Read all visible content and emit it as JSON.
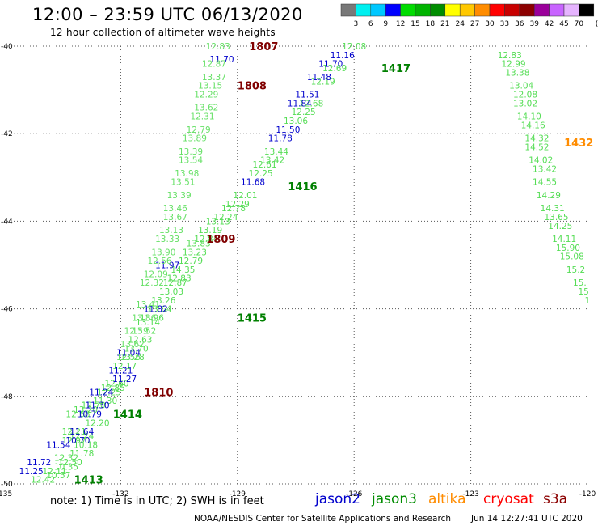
{
  "header": {
    "title": "12:00 – 23:59 UTC 06/13/2020",
    "subtitle": "12 hour collection of altimeter wave heights"
  },
  "colorbar": {
    "colors": [
      "#787878",
      "#00f0f0",
      "#00c8ff",
      "#0000ff",
      "#00dc00",
      "#00b400",
      "#008c00",
      "#ffff00",
      "#ffc800",
      "#ff8c00",
      "#ff0000",
      "#c80000",
      "#8c0000",
      "#9b009b",
      "#c864ff",
      "#e6b4ff",
      "#000000"
    ],
    "ticks": [
      "3",
      "6",
      "9",
      "12",
      "15",
      "18",
      "21",
      "24",
      "27",
      "30",
      "33",
      "36",
      "39",
      "42",
      "45",
      "70"
    ],
    "unit": "(ft)"
  },
  "chart_data": {
    "type": "scatter",
    "xlim": [
      -135,
      -120
    ],
    "ylim": [
      -50,
      -40
    ],
    "xticks": [
      "-135",
      "-132",
      "-129",
      "-126",
      "-123",
      "-120"
    ],
    "yticks": [
      "-40",
      "-42",
      "-44",
      "-46",
      "-48",
      "-50"
    ],
    "grid": true,
    "series": [
      {
        "name": "jason3 1417-1416-1415-1414",
        "color": "#55dd55",
        "points": [
          {
            "x": -126.0,
            "y": -40.0,
            "v": "12.08"
          },
          {
            "x": -126.5,
            "y": -40.5,
            "v": "12.69"
          },
          {
            "x": -126.8,
            "y": -40.8,
            "v": "12.19"
          },
          {
            "x": -127.1,
            "y": -41.3,
            "v": "12.68"
          },
          {
            "x": -127.3,
            "y": -41.5,
            "v": "12.25"
          },
          {
            "x": -127.5,
            "y": -41.7,
            "v": "13.06"
          },
          {
            "x": -128.0,
            "y": -42.4,
            "v": "13.44"
          },
          {
            "x": -128.1,
            "y": -42.6,
            "v": "13.42"
          },
          {
            "x": -128.3,
            "y": -42.7,
            "v": "12.61"
          },
          {
            "x": -128.4,
            "y": -42.9,
            "v": "12.25"
          },
          {
            "x": -128.8,
            "y": -43.4,
            "v": "12.01"
          },
          {
            "x": -129.0,
            "y": -43.6,
            "v": "12.29"
          },
          {
            "x": -129.1,
            "y": -43.7,
            "v": "12.78"
          },
          {
            "x": -129.3,
            "y": -43.9,
            "v": "12.24"
          },
          {
            "x": -129.5,
            "y": -44.0,
            "v": "13.13"
          },
          {
            "x": -129.7,
            "y": -44.2,
            "v": "13.19"
          },
          {
            "x": -129.8,
            "y": -44.4,
            "v": "12.84"
          },
          {
            "x": -130.0,
            "y": -44.5,
            "v": "13.83"
          },
          {
            "x": -130.1,
            "y": -44.7,
            "v": "13.23"
          },
          {
            "x": -130.2,
            "y": -44.9,
            "v": "12.79"
          },
          {
            "x": -130.4,
            "y": -45.1,
            "v": "14.35"
          },
          {
            "x": -130.5,
            "y": -45.3,
            "v": "12.83"
          },
          {
            "x": -130.6,
            "y": -45.4,
            "v": "12.87"
          },
          {
            "x": -130.7,
            "y": -45.6,
            "v": "13.03"
          },
          {
            "x": -130.9,
            "y": -45.8,
            "v": "13.26"
          },
          {
            "x": -131.0,
            "y": -46.0,
            "v": "13.64"
          },
          {
            "x": -131.2,
            "y": -46.2,
            "v": "13.96"
          },
          {
            "x": -131.3,
            "y": -46.3,
            "v": "13.14"
          },
          {
            "x": -131.4,
            "y": -46.5,
            "v": "13.52"
          },
          {
            "x": -131.5,
            "y": -46.7,
            "v": "12.63"
          },
          {
            "x": -131.6,
            "y": -46.9,
            "v": "13.70"
          },
          {
            "x": -131.7,
            "y": -47.1,
            "v": "13.28"
          },
          {
            "x": -131.9,
            "y": -47.3,
            "v": "12.17"
          },
          {
            "x": -132.1,
            "y": -47.7,
            "v": "12.60"
          },
          {
            "x": -132.2,
            "y": -47.8,
            "v": "12.85"
          },
          {
            "x": -132.3,
            "y": -47.9,
            "v": "12.25"
          },
          {
            "x": -132.4,
            "y": -48.1,
            "v": "11.30"
          },
          {
            "x": -132.6,
            "y": -48.6,
            "v": "12.20"
          },
          {
            "x": -132.9,
            "y": -49.1,
            "v": "10.18"
          },
          {
            "x": -133.0,
            "y": -49.3,
            "v": "11.78"
          },
          {
            "x": -133.4,
            "y": -49.6,
            "v": "10.35"
          },
          {
            "x": -133.6,
            "y": -49.8,
            "v": "10.57"
          },
          {
            "x": -133.7,
            "y": -49.7,
            "v": "12.11"
          },
          {
            "x": -133.3,
            "y": -49.5,
            "v": "12.50"
          },
          {
            "x": -133.2,
            "y": -49.0,
            "v": "12.97"
          },
          {
            "x": -133.0,
            "y": -48.9,
            "v": "12.24"
          },
          {
            "x": -133.2,
            "y": -48.8,
            "v": "12.21"
          },
          {
            "x": -133.4,
            "y": -49.4,
            "v": "12.32"
          },
          {
            "x": -134.0,
            "y": -49.9,
            "v": "12.42"
          },
          {
            "x": -133.1,
            "y": -48.4,
            "v": "12.68"
          },
          {
            "x": -132.9,
            "y": -48.3,
            "v": "13.20"
          },
          {
            "x": -132.7,
            "y": -48.2,
            "v": "12.70"
          }
        ]
      },
      {
        "name": "jason2",
        "color": "#0000cc",
        "points": [
          {
            "x": -126.3,
            "y": -40.2,
            "v": "11.16"
          },
          {
            "x": -126.6,
            "y": -40.4,
            "v": "11.70"
          },
          {
            "x": -126.9,
            "y": -40.7,
            "v": "11.48"
          },
          {
            "x": -127.2,
            "y": -41.1,
            "v": "11.51"
          },
          {
            "x": -127.4,
            "y": -41.3,
            "v": "11.84"
          },
          {
            "x": -127.7,
            "y": -41.9,
            "v": "11.50"
          },
          {
            "x": -127.9,
            "y": -42.1,
            "v": "11.78"
          },
          {
            "x": -128.6,
            "y": -43.1,
            "v": "11.68"
          },
          {
            "x": -129.4,
            "y": -40.3,
            "v": "11.70"
          },
          {
            "x": -130.8,
            "y": -45.0,
            "v": "11.97"
          },
          {
            "x": -131.1,
            "y": -46.0,
            "v": "11.82"
          },
          {
            "x": -131.8,
            "y": -47.0,
            "v": "11.04"
          },
          {
            "x": -132.0,
            "y": -47.4,
            "v": "11.21"
          },
          {
            "x": -131.9,
            "y": -47.6,
            "v": "11.27"
          },
          {
            "x": -132.5,
            "y": -47.9,
            "v": "11.24"
          },
          {
            "x": -132.6,
            "y": -48.2,
            "v": "11.30"
          },
          {
            "x": -132.8,
            "y": -48.4,
            "v": "10.79"
          },
          {
            "x": -133.0,
            "y": -48.8,
            "v": "11.64"
          },
          {
            "x": -133.1,
            "y": -49.0,
            "v": "10.70"
          },
          {
            "x": -133.6,
            "y": -49.1,
            "v": "11.54"
          },
          {
            "x": -134.1,
            "y": -49.5,
            "v": "11.72"
          },
          {
            "x": -134.3,
            "y": -49.7,
            "v": "11.25"
          }
        ]
      },
      {
        "name": "jason3 1432",
        "color": "#55dd55",
        "points": [
          {
            "x": -122.0,
            "y": -40.2,
            "v": "12.83"
          },
          {
            "x": -121.9,
            "y": -40.4,
            "v": "12.99"
          },
          {
            "x": -121.8,
            "y": -40.6,
            "v": "13.38"
          },
          {
            "x": -121.7,
            "y": -40.9,
            "v": "13.04"
          },
          {
            "x": -121.6,
            "y": -41.1,
            "v": "12.08"
          },
          {
            "x": -121.6,
            "y": -41.3,
            "v": "13.02"
          },
          {
            "x": -121.5,
            "y": -41.6,
            "v": "14.10"
          },
          {
            "x": -121.4,
            "y": -41.8,
            "v": "14.16"
          },
          {
            "x": -121.3,
            "y": -42.1,
            "v": "14.32"
          },
          {
            "x": -121.3,
            "y": -42.3,
            "v": "14.52"
          },
          {
            "x": -121.2,
            "y": -42.6,
            "v": "14.02"
          },
          {
            "x": -121.1,
            "y": -42.8,
            "v": "13.42"
          },
          {
            "x": -121.1,
            "y": -43.1,
            "v": "14.55"
          },
          {
            "x": -121.0,
            "y": -43.4,
            "v": "14.29"
          },
          {
            "x": -120.9,
            "y": -43.7,
            "v": "14.31"
          },
          {
            "x": -120.8,
            "y": -43.9,
            "v": "13.65"
          },
          {
            "x": -120.7,
            "y": -44.1,
            "v": "14.25"
          },
          {
            "x": -120.6,
            "y": -44.4,
            "v": "14.11"
          },
          {
            "x": -120.5,
            "y": -44.6,
            "v": "15.90"
          },
          {
            "x": -120.4,
            "y": -44.8,
            "v": "15.08"
          },
          {
            "x": -120.3,
            "y": -45.1,
            "v": "15.2"
          },
          {
            "x": -120.2,
            "y": -45.4,
            "v": "15."
          },
          {
            "x": -120.1,
            "y": -45.6,
            "v": "15"
          },
          {
            "x": -120.0,
            "y": -45.8,
            "v": "1"
          }
        ]
      },
      {
        "name": "cryosat 1807-1808-1809-1810",
        "color": "#66e066",
        "points": [
          {
            "x": -129.5,
            "y": -40.0,
            "v": "12.83"
          },
          {
            "x": -129.6,
            "y": -40.4,
            "v": "12.87"
          },
          {
            "x": -129.6,
            "y": -40.7,
            "v": "13.37"
          },
          {
            "x": -129.7,
            "y": -40.9,
            "v": "13.15"
          },
          {
            "x": -129.8,
            "y": -41.1,
            "v": "12.29"
          },
          {
            "x": -129.8,
            "y": -41.4,
            "v": "13.62"
          },
          {
            "x": -129.9,
            "y": -41.6,
            "v": "12.31"
          },
          {
            "x": -130.0,
            "y": -41.9,
            "v": "12.79"
          },
          {
            "x": -130.1,
            "y": -42.1,
            "v": "13.89"
          },
          {
            "x": -130.2,
            "y": -42.4,
            "v": "13.39"
          },
          {
            "x": -130.2,
            "y": -42.6,
            "v": "13.54"
          },
          {
            "x": -130.3,
            "y": -42.9,
            "v": "13.98"
          },
          {
            "x": -130.4,
            "y": -43.1,
            "v": "13.51"
          },
          {
            "x": -130.5,
            "y": -43.4,
            "v": "13.39"
          },
          {
            "x": -130.6,
            "y": -43.7,
            "v": "13.46"
          },
          {
            "x": -130.6,
            "y": -43.9,
            "v": "13.67"
          },
          {
            "x": -130.7,
            "y": -44.2,
            "v": "13.13"
          },
          {
            "x": -130.8,
            "y": -44.4,
            "v": "13.33"
          },
          {
            "x": -130.9,
            "y": -44.7,
            "v": "13.90"
          },
          {
            "x": -131.0,
            "y": -44.9,
            "v": "12.56"
          },
          {
            "x": -131.1,
            "y": -45.2,
            "v": "12.09"
          },
          {
            "x": -131.2,
            "y": -45.4,
            "v": "12.32"
          },
          {
            "x": -131.3,
            "y": -45.9,
            "v": "13.41"
          },
          {
            "x": -131.4,
            "y": -46.2,
            "v": "13.86"
          },
          {
            "x": -131.6,
            "y": -46.5,
            "v": "12.59"
          },
          {
            "x": -131.7,
            "y": -46.8,
            "v": "13.62"
          },
          {
            "x": -131.8,
            "y": -47.1,
            "v": "12.56"
          }
        ]
      }
    ],
    "track_labels": [
      {
        "x": -128.7,
        "y": -40.0,
        "text": "1807",
        "color": "#800000"
      },
      {
        "x": -129.0,
        "y": -40.9,
        "text": "1808",
        "color": "#800000"
      },
      {
        "x": -129.8,
        "y": -44.4,
        "text": "1809",
        "color": "#800000"
      },
      {
        "x": -131.4,
        "y": -47.9,
        "text": "1810",
        "color": "#800000"
      },
      {
        "x": -125.3,
        "y": -40.5,
        "text": "1417",
        "color": "#008000"
      },
      {
        "x": -127.7,
        "y": -43.2,
        "text": "1416",
        "color": "#008000"
      },
      {
        "x": -129.0,
        "y": -46.2,
        "text": "1415",
        "color": "#008000"
      },
      {
        "x": -132.2,
        "y": -48.4,
        "text": "1414",
        "color": "#008000"
      },
      {
        "x": -133.2,
        "y": -49.9,
        "text": "1413",
        "color": "#008000"
      },
      {
        "x": -120.6,
        "y": -42.2,
        "text": "1432",
        "color": "#ff8c00"
      }
    ]
  },
  "footer": {
    "note": "note: 1) Time is in UTC; 2) SWH is in feet",
    "satellites": [
      {
        "name": "jason2",
        "color": "#0000cc"
      },
      {
        "name": "jason3",
        "color": "#008c00"
      },
      {
        "name": "altika",
        "color": "#ff8c00"
      },
      {
        "name": "cryosat",
        "color": "#ff0000"
      },
      {
        "name": "s3a",
        "color": "#8c0000"
      }
    ],
    "credit": "NOAA/NESDIS Center for Satellite Applications and Research",
    "timestamp": "Jun 14 12:27:41 UTC 2020"
  }
}
